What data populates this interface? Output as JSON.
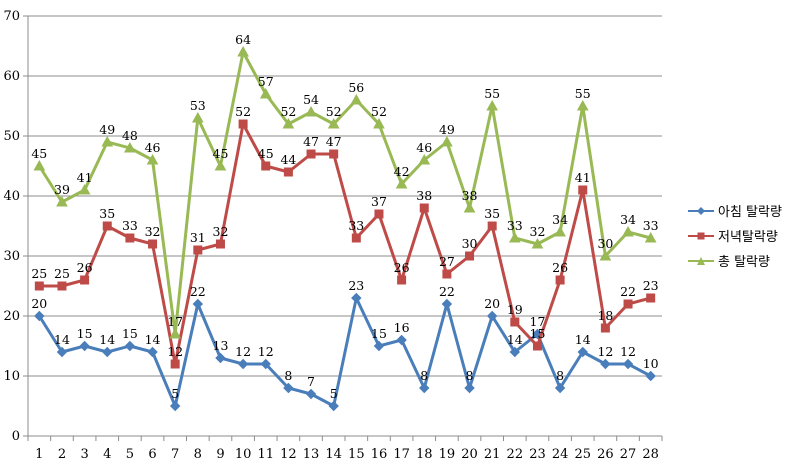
{
  "chart_data": {
    "type": "line",
    "x": [
      1,
      2,
      3,
      4,
      5,
      6,
      7,
      8,
      9,
      10,
      11,
      12,
      13,
      14,
      15,
      16,
      17,
      18,
      19,
      20,
      21,
      22,
      23,
      24,
      25,
      26,
      27,
      28
    ],
    "ylim": [
      0,
      70
    ],
    "yticks": [
      0,
      10,
      20,
      30,
      40,
      50,
      60,
      70
    ],
    "grid": true,
    "legend_position": "right",
    "series": [
      {
        "name": "아침 탈락량",
        "color": "#4A7EBB",
        "marker": "diamond",
        "values": [
          20,
          14,
          15,
          14,
          15,
          14,
          5,
          22,
          13,
          12,
          12,
          8,
          7,
          5,
          23,
          15,
          16,
          8,
          22,
          8,
          20,
          14,
          17,
          8,
          14,
          12,
          12,
          10
        ]
      },
      {
        "name": "저녁탈락량",
        "color": "#BE4B48",
        "marker": "square",
        "values": [
          25,
          25,
          26,
          35,
          33,
          32,
          12,
          31,
          32,
          52,
          45,
          44,
          47,
          47,
          33,
          37,
          26,
          38,
          27,
          30,
          35,
          19,
          15,
          26,
          41,
          18,
          22,
          23
        ]
      },
      {
        "name": "총 탈락량",
        "color": "#98B954",
        "marker": "triangle",
        "values": [
          45,
          39,
          41,
          49,
          48,
          46,
          17,
          53,
          45,
          64,
          57,
          52,
          54,
          52,
          56,
          52,
          42,
          46,
          49,
          38,
          55,
          33,
          32,
          34,
          55,
          30,
          34,
          33
        ]
      }
    ]
  }
}
